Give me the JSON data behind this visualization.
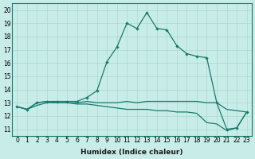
{
  "xlabel": "Humidex (Indice chaleur)",
  "bg_color": "#c8ece8",
  "line_color": "#1a7a6e",
  "xlim": [
    -0.5,
    23.5
  ],
  "ylim": [
    10.5,
    20.5
  ],
  "xticks": [
    0,
    1,
    2,
    3,
    4,
    5,
    6,
    7,
    8,
    9,
    10,
    11,
    12,
    13,
    14,
    15,
    16,
    17,
    18,
    19,
    20,
    21,
    22,
    23
  ],
  "yticks": [
    11,
    12,
    13,
    14,
    15,
    16,
    17,
    18,
    19,
    20
  ],
  "series": [
    [
      12.7,
      12.5,
      13.0,
      13.1,
      13.1,
      13.1,
      13.1,
      13.4,
      13.9,
      16.1,
      17.2,
      19.0,
      18.6,
      19.8,
      18.6,
      18.5,
      17.3,
      16.7,
      16.5,
      16.4,
      13.0,
      11.0,
      11.1,
      12.3
    ],
    [
      12.7,
      12.5,
      13.0,
      13.1,
      13.0,
      13.0,
      13.0,
      13.1,
      13.0,
      13.0,
      13.0,
      13.1,
      13.0,
      13.1,
      13.1,
      13.1,
      13.1,
      13.1,
      13.1,
      13.0,
      13.0,
      12.5,
      12.4,
      12.3
    ],
    [
      12.7,
      12.5,
      12.8,
      13.0,
      13.0,
      13.0,
      12.9,
      12.9,
      12.8,
      12.7,
      12.6,
      12.5,
      12.5,
      12.5,
      12.4,
      12.4,
      12.3,
      12.3,
      12.2,
      11.5,
      11.4,
      10.9,
      11.1,
      12.3
    ]
  ],
  "grid_color": "#aad8d0",
  "font_color": "#1a1a1a",
  "xlabel_fontsize": 6.5,
  "tick_fontsize": 5.5
}
